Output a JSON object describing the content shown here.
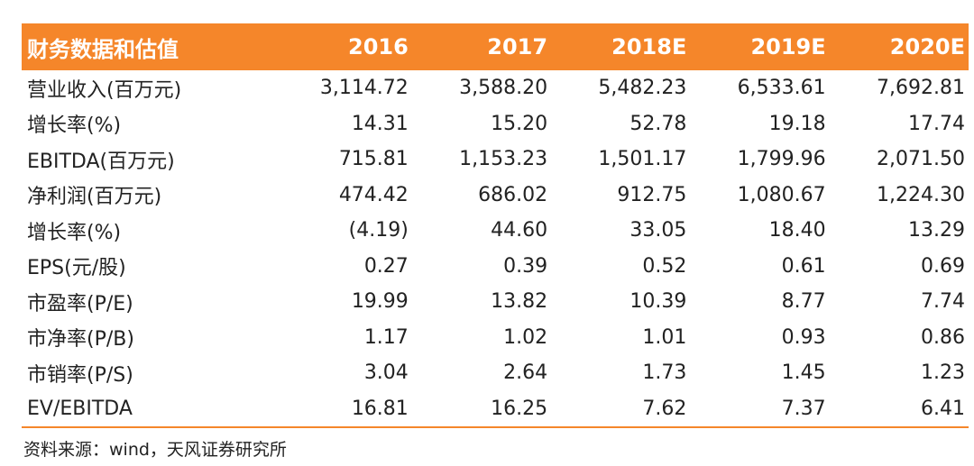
{
  "header": [
    "财务数据和估值",
    "2016",
    "2017",
    "2018E",
    "2019E",
    "2020E"
  ],
  "rows": [
    [
      "营业收入(百万元)",
      "3,114.72",
      "3,588.20",
      "5,482.23",
      "6,533.61",
      "7,692.81"
    ],
    [
      "增长率(%)",
      "14.31",
      "15.20",
      "52.78",
      "19.18",
      "17.74"
    ],
    [
      "EBITDA(百万元)",
      "715.81",
      "1,153.23",
      "1,501.17",
      "1,799.96",
      "2,071.50"
    ],
    [
      "净利润(百万元)",
      "474.42",
      "686.02",
      "912.75",
      "1,080.67",
      "1,224.30"
    ],
    [
      "增长率(%)",
      "(4.19)",
      "44.60",
      "33.05",
      "18.40",
      "13.29"
    ],
    [
      "EPS(元/股)",
      "0.27",
      "0.39",
      "0.52",
      "0.61",
      "0.69"
    ],
    [
      "市盈率(P/E)",
      "19.99",
      "13.82",
      "10.39",
      "8.77",
      "7.74"
    ],
    [
      "市净率(P/B)",
      "1.17",
      "1.02",
      "1.01",
      "0.93",
      "0.86"
    ],
    [
      "市销率(P/S)",
      "3.04",
      "2.64",
      "1.73",
      "1.45",
      "1.23"
    ],
    [
      "EV/EBITDA",
      "16.81",
      "16.25",
      "7.62",
      "7.37",
      "6.41"
    ]
  ],
  "source": "资料来源：wind，天风证券研究所",
  "colors": {
    "accent": "#f5862a"
  }
}
